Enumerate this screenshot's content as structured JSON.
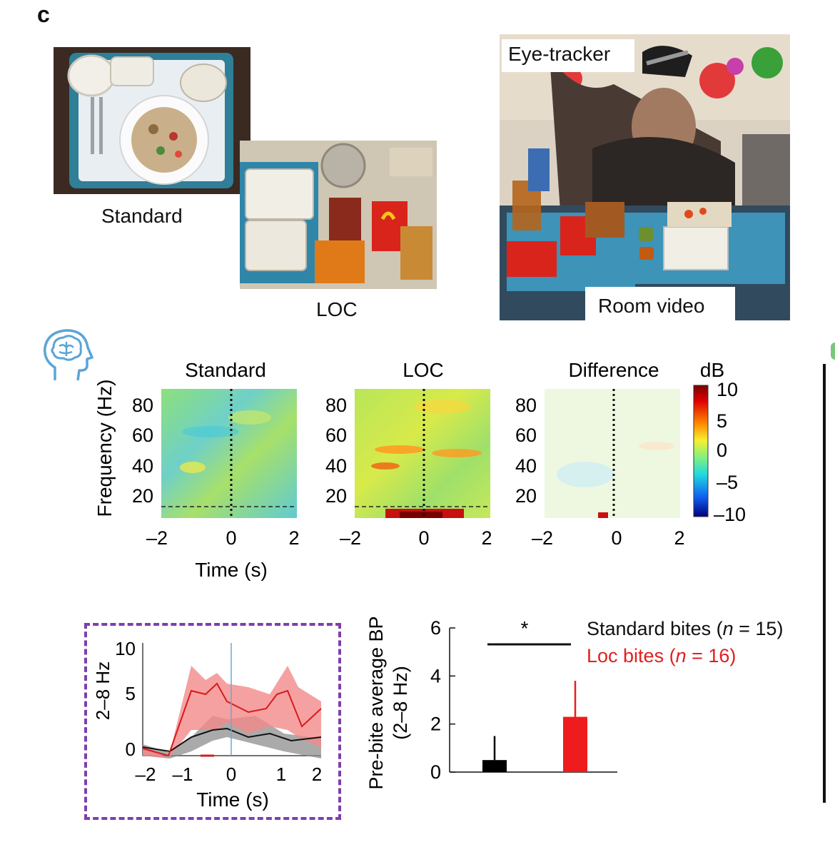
{
  "panel": "c",
  "photos": {
    "standard_caption": "Standard",
    "loc_caption": "LOC",
    "eye_tracker_label": "Eye-tracker",
    "room_video_label": "Room video"
  },
  "spectrograms": {
    "titles": [
      "Standard",
      "LOC",
      "Difference"
    ],
    "y_axis_label": "Frequency (Hz)",
    "y_ticks": [
      "80",
      "60",
      "40",
      "20"
    ],
    "x_ticks": [
      "–2",
      "0",
      "2"
    ],
    "x_axis_label": "Time (s)",
    "colorbar": {
      "unit": "dB",
      "ticks": [
        "10",
        "5",
        "0",
        "–5",
        "–10"
      ]
    }
  },
  "timecourse": {
    "y_label": "2–8 Hz",
    "y_ticks": [
      "10",
      "5",
      "0"
    ],
    "x_ticks": [
      "–2",
      "–1",
      "0",
      "1",
      "2"
    ],
    "x_label": "Time (s)"
  },
  "chart_data": {
    "type": "bar",
    "categories": [
      "Standard bites",
      "Loc bites"
    ],
    "values": [
      0.5,
      2.3
    ],
    "errors": [
      1.0,
      1.5
    ],
    "colors": [
      "#000000",
      "#ee1c1c"
    ],
    "ylim": [
      0,
      6
    ],
    "y_ticks": [
      "0",
      "2",
      "4",
      "6"
    ],
    "ylabel_line1": "Pre-bite average BP",
    "ylabel_line2": "(2–8 Hz)",
    "significance": "*"
  },
  "legend": {
    "standard": {
      "prefix": "Standard bites (",
      "n": "n",
      "suffix": " = 15)"
    },
    "loc": {
      "prefix": "Loc bites (",
      "n": "n",
      "suffix": " = 16)"
    }
  }
}
